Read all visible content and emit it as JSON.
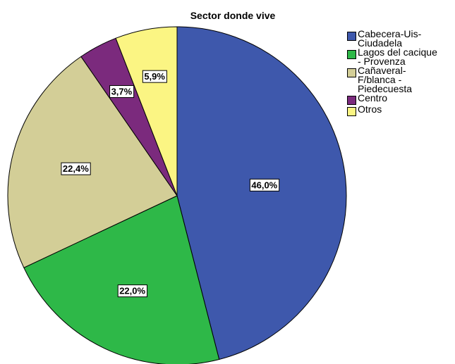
{
  "chart_data": {
    "type": "pie",
    "title": "Sector donde vive",
    "legend_position": "right",
    "start": "top, clockwise",
    "slices": [
      {
        "name": "Cabecera-Uis-\nCiudadela",
        "value": 46.0,
        "label": "46,0%",
        "color": "#3e58ac"
      },
      {
        "name": "Lagos del cacique\n- Provenza",
        "value": 22.0,
        "label": "22,0%",
        "color": "#2eb848"
      },
      {
        "name": "Cañaveral-\nF/blanca -\nPiedecuesta",
        "value": 22.4,
        "label": "22,4%",
        "color": "#d3ce97"
      },
      {
        "name": "Centro",
        "value": 3.7,
        "label": "3,7%",
        "color": "#7b2a7d"
      },
      {
        "name": "Otros",
        "value": 5.9,
        "label": "5,9%",
        "color": "#fbf583"
      }
    ]
  }
}
